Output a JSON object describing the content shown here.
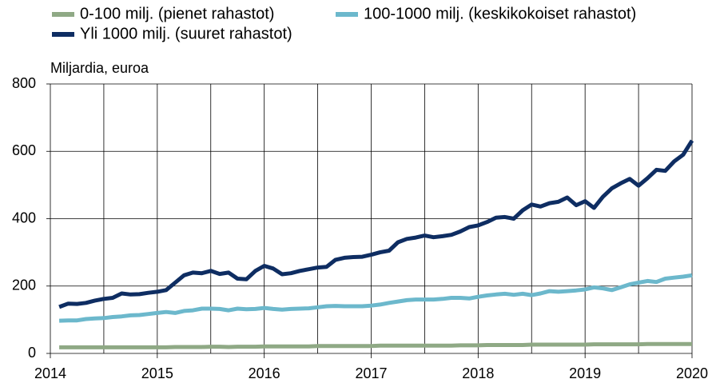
{
  "chart_data": {
    "type": "line",
    "y_axis_label": "Miljardia, euroa",
    "x": [
      2014.083,
      2014.167,
      2014.25,
      2014.333,
      2014.417,
      2014.5,
      2014.583,
      2014.667,
      2014.75,
      2014.833,
      2014.917,
      2015,
      2015.083,
      2015.167,
      2015.25,
      2015.333,
      2015.417,
      2015.5,
      2015.583,
      2015.667,
      2015.75,
      2015.833,
      2015.917,
      2016,
      2016.083,
      2016.167,
      2016.25,
      2016.333,
      2016.417,
      2016.5,
      2016.583,
      2016.667,
      2016.75,
      2016.833,
      2016.917,
      2017,
      2017.083,
      2017.167,
      2017.25,
      2017.333,
      2017.417,
      2017.5,
      2017.583,
      2017.667,
      2017.75,
      2017.833,
      2017.917,
      2018,
      2018.083,
      2018.167,
      2018.25,
      2018.333,
      2018.417,
      2018.5,
      2018.583,
      2018.667,
      2018.75,
      2018.833,
      2018.917,
      2019,
      2019.083,
      2019.167,
      2019.25,
      2019.333,
      2019.417,
      2019.5,
      2019.583,
      2019.667,
      2019.75,
      2019.833,
      2019.917,
      2020
    ],
    "series": [
      {
        "name": "0-100 milj. (pienet rahastot)",
        "color": "#8fa985",
        "values": [
          18,
          18,
          18,
          18,
          18,
          18,
          18,
          18,
          18,
          18,
          18,
          18,
          18,
          19,
          19,
          19,
          19,
          20,
          20,
          19,
          20,
          20,
          20,
          21,
          21,
          21,
          21,
          21,
          21,
          22,
          22,
          22,
          22,
          22,
          22,
          22,
          23,
          23,
          23,
          23,
          23,
          23,
          23,
          23,
          23,
          24,
          24,
          24,
          25,
          25,
          25,
          25,
          25,
          26,
          26,
          26,
          26,
          26,
          26,
          26,
          27,
          27,
          27,
          27,
          27,
          27,
          28,
          28,
          28,
          28,
          28,
          28
        ]
      },
      {
        "name": "100-1000 milj. (keskikokoiset rahastot)",
        "color": "#6cb8cc",
        "values": [
          97,
          98,
          98,
          102,
          104,
          105,
          108,
          110,
          113,
          114,
          117,
          120,
          123,
          120,
          126,
          128,
          133,
          133,
          132,
          128,
          133,
          131,
          132,
          135,
          132,
          130,
          132,
          133,
          134,
          137,
          140,
          141,
          140,
          140,
          140,
          142,
          145,
          150,
          154,
          158,
          160,
          160,
          160,
          162,
          165,
          165,
          163,
          168,
          172,
          175,
          177,
          174,
          177,
          173,
          178,
          185,
          183,
          185,
          187,
          190,
          196,
          193,
          188,
          196,
          205,
          210,
          215,
          212,
          222,
          225,
          228,
          232
        ]
      },
      {
        "name": "Yli 1000 milj. (suuret rahastot)",
        "color": "#0e2d62",
        "values": [
          138,
          148,
          147,
          150,
          157,
          162,
          165,
          178,
          175,
          176,
          180,
          183,
          188,
          210,
          232,
          240,
          238,
          245,
          236,
          240,
          222,
          220,
          245,
          260,
          252,
          235,
          238,
          245,
          250,
          255,
          257,
          278,
          284,
          286,
          287,
          293,
          300,
          305,
          330,
          340,
          344,
          350,
          345,
          348,
          352,
          362,
          375,
          380,
          390,
          403,
          405,
          400,
          425,
          442,
          436,
          446,
          450,
          463,
          440,
          452,
          432,
          465,
          490,
          505,
          518,
          498,
          520,
          545,
          542,
          570,
          590,
          632
        ]
      }
    ],
    "xlim": [
      2014,
      2020
    ],
    "xticks": [
      2014,
      2015,
      2016,
      2017,
      2018,
      2019,
      2020
    ],
    "x_minor_gridlines": [
      2014.5,
      2015.5,
      2016.5,
      2017.5,
      2018.5,
      2019.5
    ],
    "ylim": [
      0,
      800
    ],
    "yticks": [
      0,
      200,
      400,
      600,
      800
    ],
    "grid": true,
    "legend": "top"
  }
}
